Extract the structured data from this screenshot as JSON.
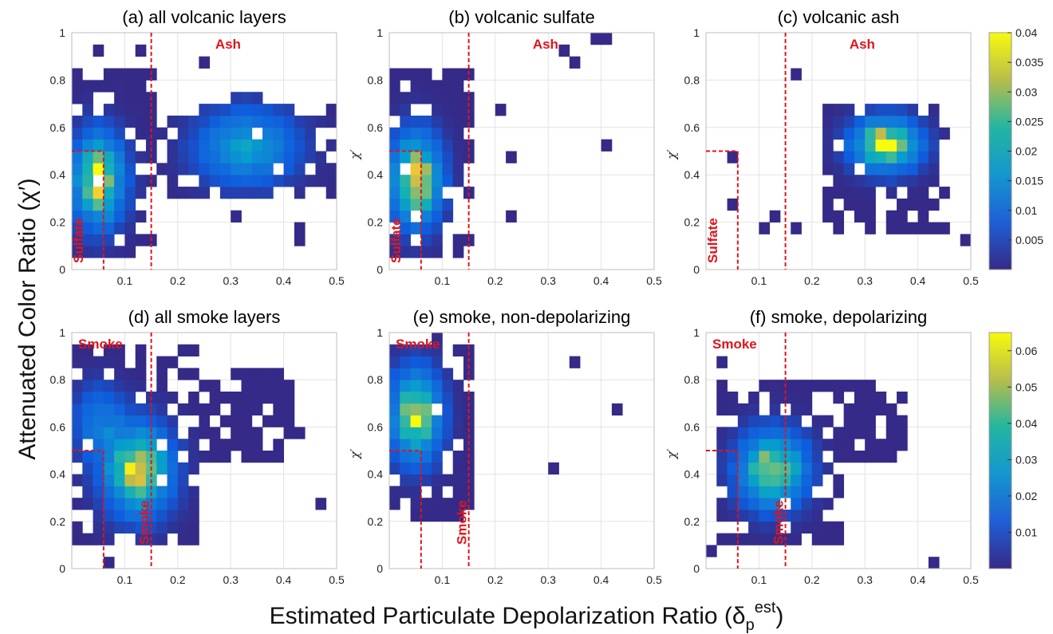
{
  "figure": {
    "ylabel": "Attenuated Color Ratio (χ′)",
    "xlabel": "Estimated Particulate  Depolarization Ratio (δ",
    "xlabel_sub": "p",
    "xlabel_sup": "est",
    "xlabel_close": ")"
  },
  "colormap": {
    "low": "#3b2e91",
    "mid": "#1fa8b8",
    "high": "#f5e41c",
    "region_color": "#e0141c"
  },
  "chart_data": [
    {
      "id": "a",
      "type": "heatmap",
      "title": "(a) all volcanic layers",
      "xlim": [
        0,
        0.5
      ],
      "ylim": [
        0,
        1
      ],
      "xticks": [
        "0.1",
        "0.2",
        "0.3",
        "0.4",
        "0.5"
      ],
      "yticks": [
        "0",
        "0.2",
        "0.4",
        "0.6",
        "0.8",
        "1"
      ],
      "ylabel": "",
      "regions": [
        {
          "label": "Sulfate",
          "box_x": [
            0,
            0.06
          ],
          "box_y": [
            0,
            0.5
          ]
        },
        {
          "label": "Ash",
          "x_threshold": 0.15
        }
      ],
      "density_blobs": [
        {
          "x": 0.05,
          "y": 0.38,
          "sx": 0.03,
          "sy": 0.12,
          "peak": 0.04
        },
        {
          "x": 0.33,
          "y": 0.52,
          "sx": 0.06,
          "sy": 0.1,
          "peak": 0.02
        }
      ],
      "coverage": [
        {
          "x": [
            0,
            0.16
          ],
          "y": [
            0.05,
            0.85
          ]
        },
        {
          "x": [
            0.16,
            0.5
          ],
          "y": [
            0.3,
            0.65
          ]
        }
      ]
    },
    {
      "id": "b",
      "type": "heatmap",
      "title": "(b) volcanic sulfate",
      "xlim": [
        0,
        0.5
      ],
      "ylim": [
        0,
        1
      ],
      "xticks": [
        "0.1",
        "0.2",
        "0.3",
        "0.4",
        "0.5"
      ],
      "yticks": [
        "0",
        "0.2",
        "0.4",
        "0.6",
        "0.8",
        "1"
      ],
      "ylabel": "χ′",
      "regions": [
        {
          "label": "Sulfate",
          "box_x": [
            0,
            0.06
          ],
          "box_y": [
            0,
            0.5
          ]
        },
        {
          "label": "Ash",
          "x_threshold": 0.15
        }
      ],
      "density_blobs": [
        {
          "x": 0.05,
          "y": 0.38,
          "sx": 0.03,
          "sy": 0.12,
          "peak": 0.04
        }
      ],
      "coverage": [
        {
          "x": [
            0,
            0.16
          ],
          "y": [
            0.05,
            0.85
          ]
        }
      ]
    },
    {
      "id": "c",
      "type": "heatmap",
      "title": "(c) volcanic ash",
      "xlim": [
        0,
        0.5
      ],
      "ylim": [
        0,
        1
      ],
      "xticks": [
        "0.1",
        "0.2",
        "0.3",
        "0.4",
        "0.5"
      ],
      "yticks": [
        "0",
        "0.2",
        "0.4",
        "0.6",
        "0.8",
        "1"
      ],
      "ylabel": "χ′",
      "regions": [
        {
          "label": "Sulfate",
          "box_x": [
            0,
            0.06
          ],
          "box_y": [
            0,
            0.5
          ]
        },
        {
          "label": "Ash",
          "x_threshold": 0.15
        }
      ],
      "density_blobs": [
        {
          "x": 0.34,
          "y": 0.53,
          "sx": 0.04,
          "sy": 0.07,
          "peak": 0.04
        }
      ],
      "coverage": [
        {
          "x": [
            0.22,
            0.46
          ],
          "y": [
            0.15,
            0.72
          ]
        }
      ],
      "colorbar": {
        "ticks": [
          "0.005",
          "0.01",
          "0.015",
          "0.02",
          "0.025",
          "0.03",
          "0.035",
          "0.04"
        ],
        "max": 0.04
      }
    },
    {
      "id": "d",
      "type": "heatmap",
      "title": "(d) all smoke layers",
      "xlim": [
        0,
        0.5
      ],
      "ylim": [
        0,
        1
      ],
      "xticks": [
        "0.1",
        "0.2",
        "0.3",
        "0.4",
        "0.5"
      ],
      "yticks": [
        "0",
        "0.2",
        "0.4",
        "0.6",
        "0.8",
        "1"
      ],
      "ylabel": "",
      "regions": [
        {
          "label": "Smoke",
          "box_x": [
            0,
            0.06
          ],
          "box_y": [
            0,
            0.5
          ]
        },
        {
          "label": "Smoke",
          "x_threshold": 0.15
        }
      ],
      "density_blobs": [
        {
          "x": 0.125,
          "y": 0.42,
          "sx": 0.04,
          "sy": 0.12,
          "peak": 0.06
        },
        {
          "x": 0.05,
          "y": 0.62,
          "sx": 0.03,
          "sy": 0.1,
          "peak": 0.02
        }
      ],
      "coverage": [
        {
          "x": [
            0,
            0.24
          ],
          "y": [
            0.12,
            0.95
          ]
        },
        {
          "x": [
            0.24,
            0.42
          ],
          "y": [
            0.45,
            0.85
          ]
        }
      ]
    },
    {
      "id": "e",
      "type": "heatmap",
      "title": "(e) smoke, non-depolarizing",
      "xlim": [
        0,
        0.5
      ],
      "ylim": [
        0,
        1
      ],
      "xticks": [
        "0.1",
        "0.2",
        "0.3",
        "0.4",
        "0.5"
      ],
      "yticks": [
        "0",
        "0.2",
        "0.4",
        "0.6",
        "0.8",
        "1"
      ],
      "ylabel": "χ′",
      "regions": [
        {
          "label": "Smoke",
          "box_x": [
            0,
            0.06
          ],
          "box_y": [
            0,
            0.5
          ]
        },
        {
          "label": "Smoke",
          "x_threshold": 0.15
        }
      ],
      "density_blobs": [
        {
          "x": 0.05,
          "y": 0.65,
          "sx": 0.03,
          "sy": 0.12,
          "peak": 0.06
        }
      ],
      "coverage": [
        {
          "x": [
            0,
            0.16
          ],
          "y": [
            0.22,
            0.95
          ]
        }
      ]
    },
    {
      "id": "f",
      "type": "heatmap",
      "title": "(f) smoke, depolarizing",
      "xlim": [
        0,
        0.5
      ],
      "ylim": [
        0,
        1
      ],
      "xticks": [
        "0.1",
        "0.2",
        "0.3",
        "0.4",
        "0.5"
      ],
      "yticks": [
        "0",
        "0.2",
        "0.4",
        "0.6",
        "0.8",
        "1"
      ],
      "ylabel": "χ′",
      "regions": [
        {
          "label": "Smoke",
          "box_x": [
            0,
            0.06
          ],
          "box_y": [
            0,
            0.5
          ]
        },
        {
          "label": "Smoke",
          "x_threshold": 0.15
        }
      ],
      "density_blobs": [
        {
          "x": 0.125,
          "y": 0.42,
          "sx": 0.04,
          "sy": 0.1,
          "peak": 0.06
        }
      ],
      "coverage": [
        {
          "x": [
            0.02,
            0.26
          ],
          "y": [
            0.12,
            0.8
          ]
        },
        {
          "x": [
            0.26,
            0.38
          ],
          "y": [
            0.45,
            0.78
          ]
        }
      ],
      "colorbar": {
        "ticks": [
          "0.01",
          "0.02",
          "0.03",
          "0.04",
          "0.05",
          "0.06"
        ],
        "max": 0.065
      }
    }
  ]
}
